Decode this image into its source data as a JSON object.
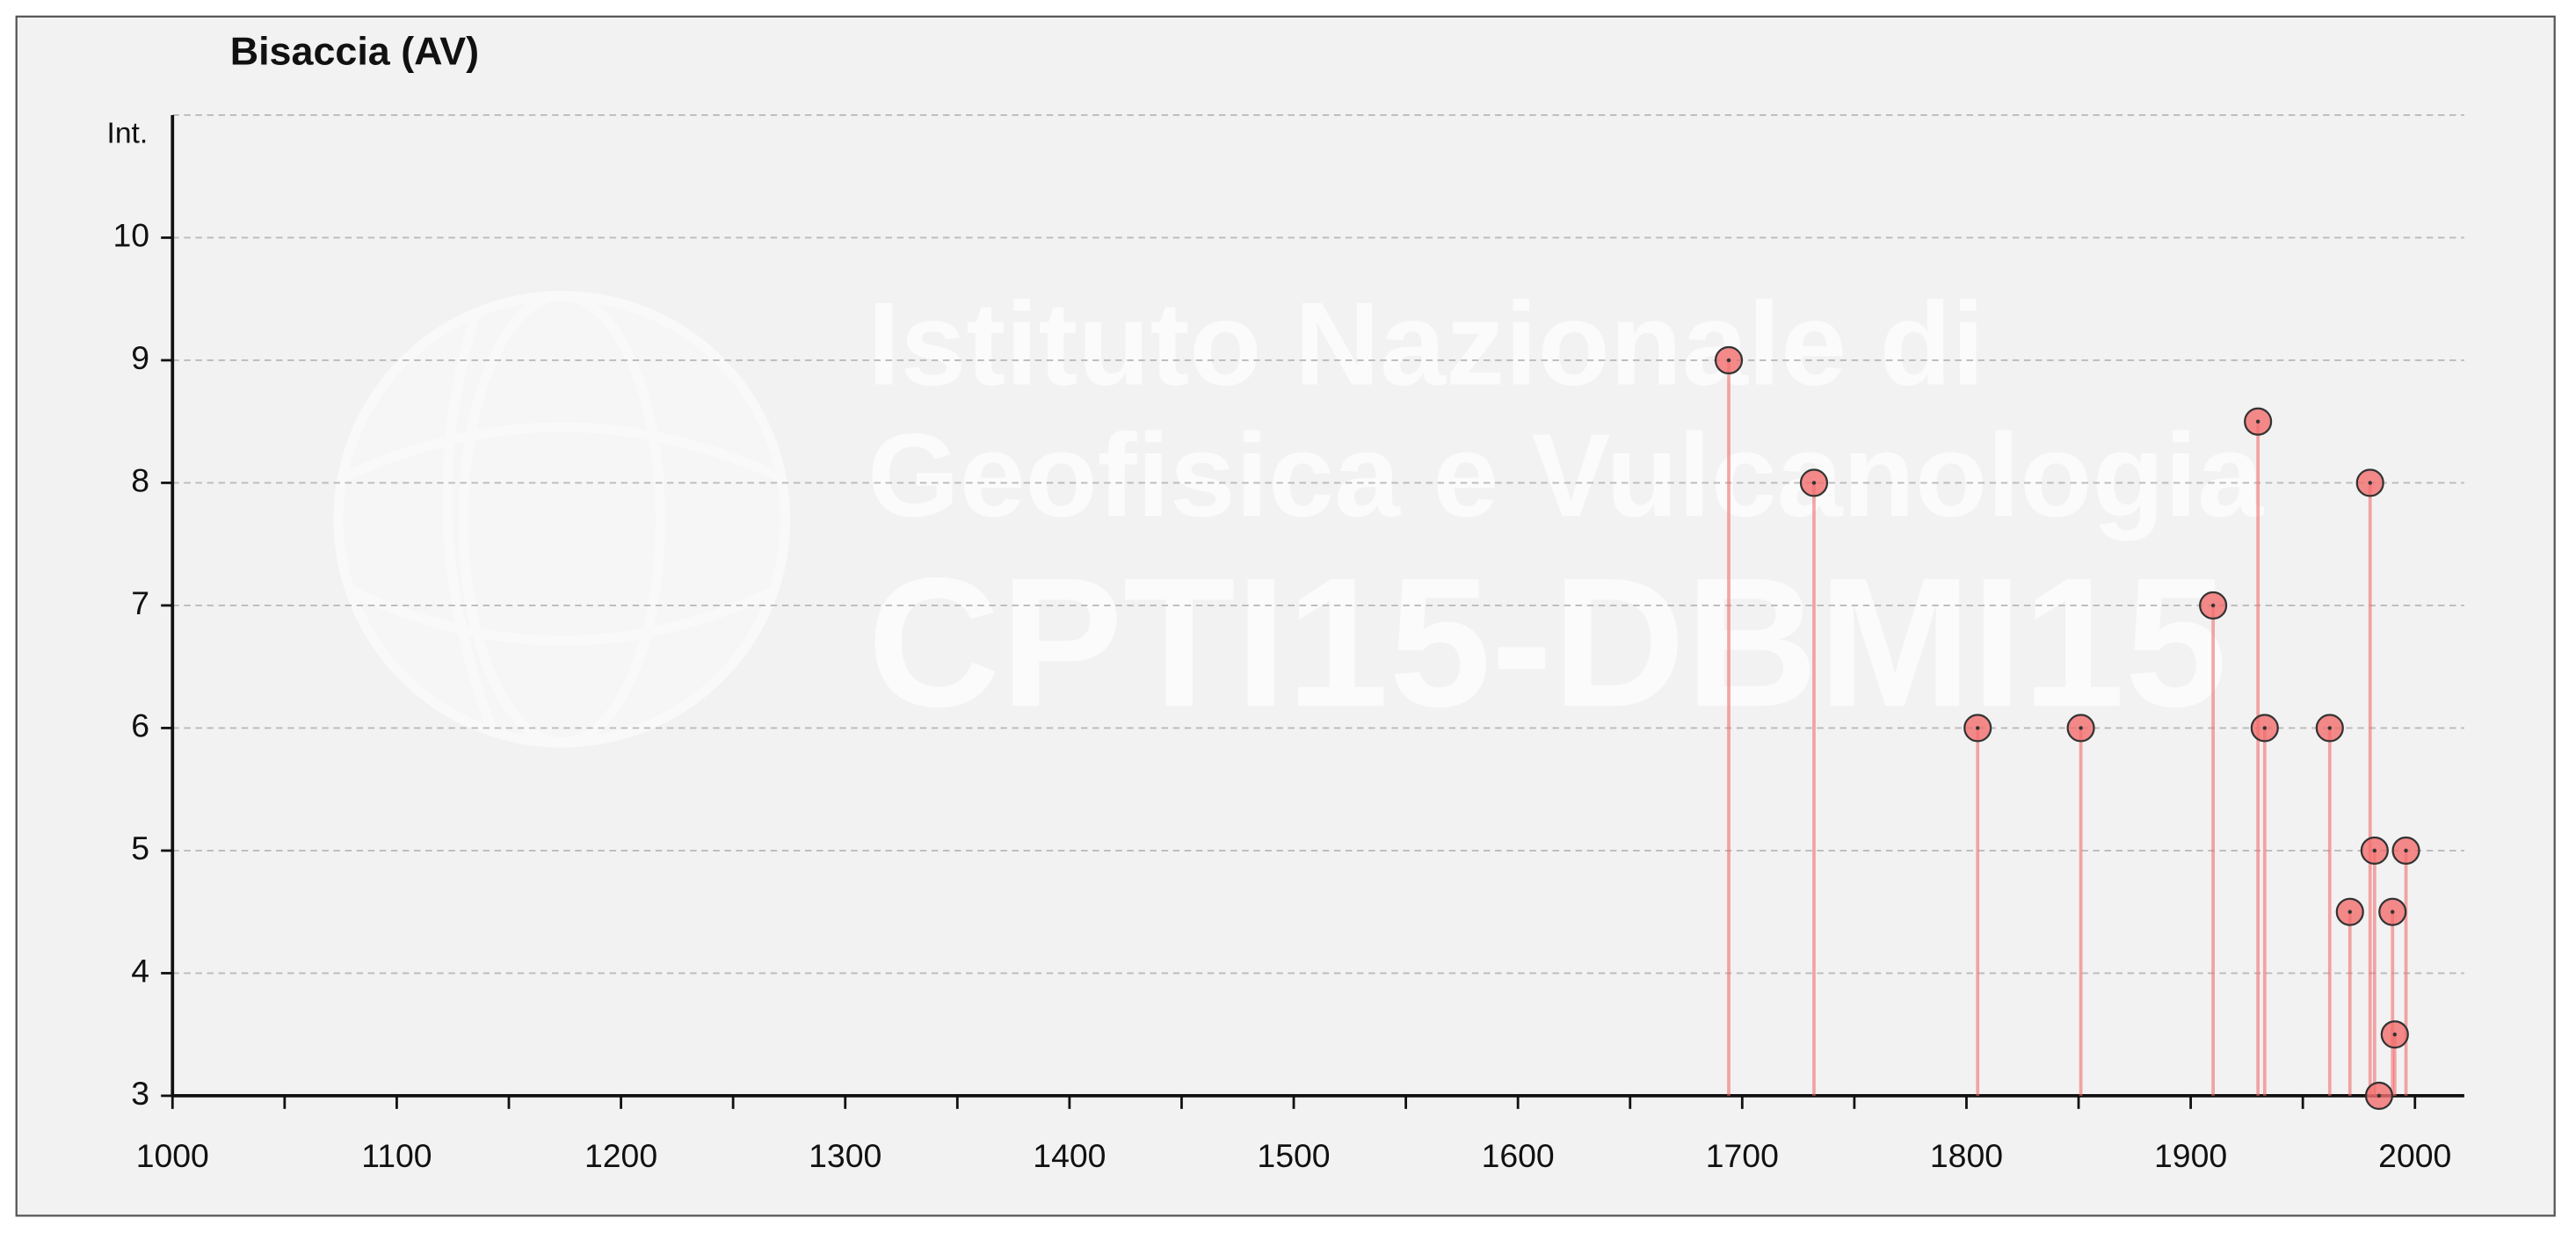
{
  "chart_data": {
    "type": "stem",
    "title": "Bisaccia (AV)",
    "y_label": "Int.",
    "watermark": [
      "Istituto Nazionale di",
      "Geofisica e Vulcanologia",
      "CPTI15-DBMI15"
    ],
    "x": [
      1694,
      1732,
      1805,
      1851,
      1910,
      1930,
      1933,
      1962,
      1971,
      1980,
      1982,
      1984,
      1990,
      1991,
      1996
    ],
    "values": [
      9,
      8,
      6,
      6,
      7,
      8.5,
      6,
      6,
      4.5,
      8,
      5,
      3,
      4.5,
      3.5,
      5
    ],
    "color": "#f26d6d",
    "xlim": [
      1000,
      2022
    ],
    "ylim": [
      3,
      11
    ],
    "xticks": [
      1000,
      1100,
      1200,
      1300,
      1400,
      1500,
      1600,
      1700,
      1800,
      1900,
      2000
    ],
    "yticks": [
      3,
      4,
      5,
      6,
      7,
      8,
      9,
      10
    ],
    "grid": true
  }
}
